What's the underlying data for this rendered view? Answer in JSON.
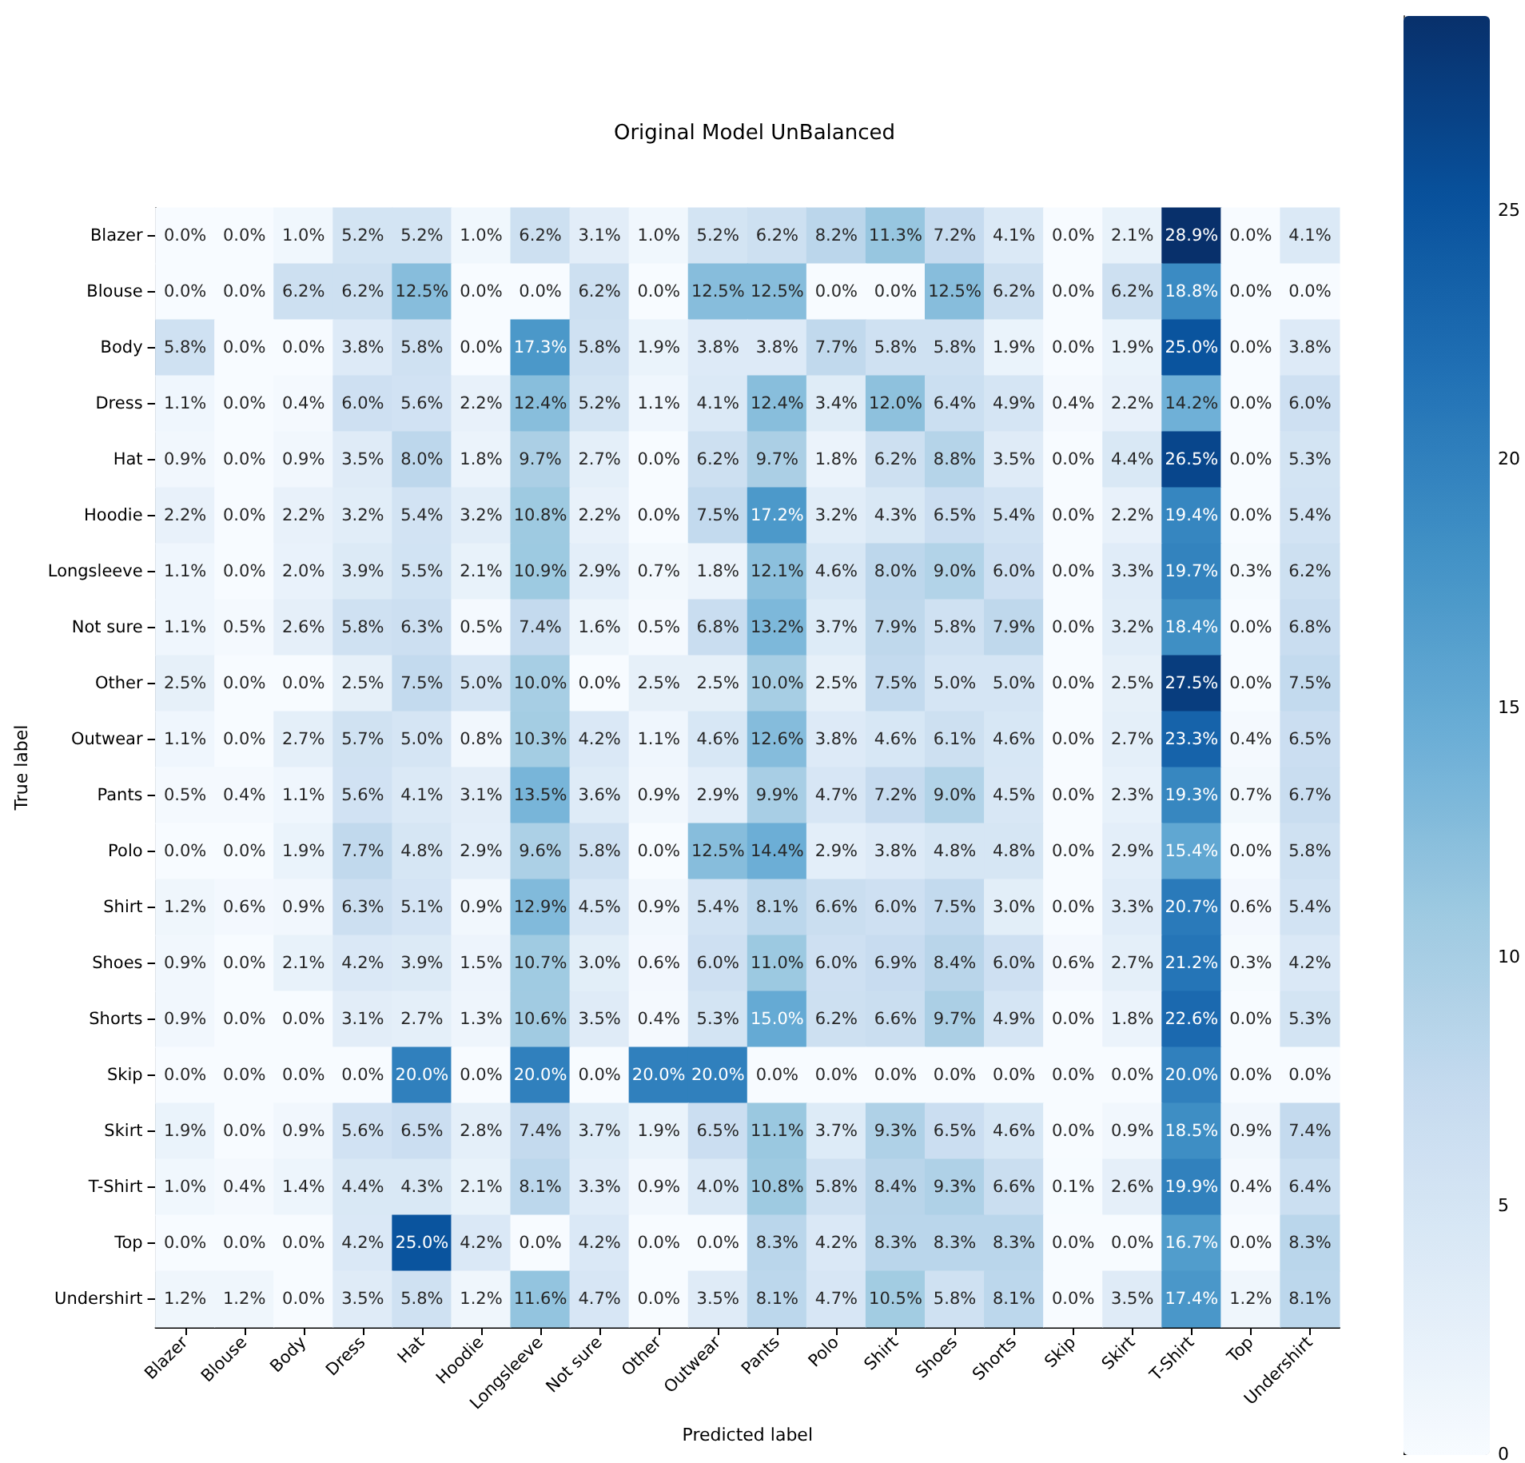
{
  "chart_data": {
    "type": "heatmap",
    "title": "Original Model UnBalanced",
    "xlabel": "Predicted label",
    "ylabel": "True label",
    "categories": [
      "Blazer",
      "Blouse",
      "Body",
      "Dress",
      "Hat",
      "Hoodie",
      "Longsleeve",
      "Not sure",
      "Other",
      "Outwear",
      "Pants",
      "Polo",
      "Shirt",
      "Shoes",
      "Shorts",
      "Skip",
      "Skirt",
      "T-Shirt",
      "Top",
      "Undershirt"
    ],
    "y_categories": [
      "Blazer",
      "Blouse",
      "Body",
      "Dress",
      "Hat",
      "Hoodie",
      "Longsleeve",
      "Not sure",
      "Other",
      "Outwear",
      "Pants",
      "Polo",
      "Shirt",
      "Shoes",
      "Shorts",
      "Skip",
      "Skirt",
      "T-Shirt",
      "Top",
      "Undershirt"
    ],
    "cells": [
      [
        0.0,
        0.0,
        1.0,
        5.2,
        5.2,
        1.0,
        6.2,
        3.1,
        1.0,
        5.2,
        6.2,
        8.2,
        11.3,
        7.2,
        4.1,
        0.0,
        2.1,
        28.9,
        0.0,
        4.1
      ],
      [
        0.0,
        0.0,
        6.2,
        6.2,
        12.5,
        0.0,
        0.0,
        6.2,
        0.0,
        12.5,
        12.5,
        0.0,
        0.0,
        12.5,
        6.2,
        0.0,
        6.2,
        18.8,
        0.0,
        0.0
      ],
      [
        5.8,
        0.0,
        0.0,
        3.8,
        5.8,
        0.0,
        17.3,
        5.8,
        1.9,
        3.8,
        3.8,
        7.7,
        5.8,
        5.8,
        1.9,
        0.0,
        1.9,
        25.0,
        0.0,
        3.8
      ],
      [
        1.1,
        0.0,
        0.4,
        6.0,
        5.6,
        2.2,
        12.4,
        5.2,
        1.1,
        4.1,
        12.4,
        3.4,
        12.0,
        6.4,
        4.9,
        0.4,
        2.2,
        14.2,
        0.0,
        6.0
      ],
      [
        0.9,
        0.0,
        0.9,
        3.5,
        8.0,
        1.8,
        9.7,
        2.7,
        0.0,
        6.2,
        9.7,
        1.8,
        6.2,
        8.8,
        3.5,
        0.0,
        4.4,
        26.5,
        0.0,
        5.3
      ],
      [
        2.2,
        0.0,
        2.2,
        3.2,
        5.4,
        3.2,
        10.8,
        2.2,
        0.0,
        7.5,
        17.2,
        3.2,
        4.3,
        6.5,
        5.4,
        0.0,
        2.2,
        19.4,
        0.0,
        5.4
      ],
      [
        1.1,
        0.0,
        2.0,
        3.9,
        5.5,
        2.1,
        10.9,
        2.9,
        0.7,
        1.8,
        12.1,
        4.6,
        8.0,
        9.0,
        6.0,
        0.0,
        3.3,
        19.7,
        0.3,
        6.2
      ],
      [
        1.1,
        0.5,
        2.6,
        5.8,
        6.3,
        0.5,
        7.4,
        1.6,
        0.5,
        6.8,
        13.2,
        3.7,
        7.9,
        5.8,
        7.9,
        0.0,
        3.2,
        18.4,
        0.0,
        6.8
      ],
      [
        2.5,
        0.0,
        0.0,
        2.5,
        7.5,
        5.0,
        10.0,
        0.0,
        2.5,
        2.5,
        10.0,
        2.5,
        7.5,
        5.0,
        5.0,
        0.0,
        2.5,
        27.5,
        0.0,
        7.5
      ],
      [
        1.1,
        0.0,
        2.7,
        5.7,
        5.0,
        0.8,
        10.3,
        4.2,
        1.1,
        4.6,
        12.6,
        3.8,
        4.6,
        6.1,
        4.6,
        0.0,
        2.7,
        23.3,
        0.4,
        6.5
      ],
      [
        0.5,
        0.4,
        1.1,
        5.6,
        4.1,
        3.1,
        13.5,
        3.6,
        0.9,
        2.9,
        9.9,
        4.7,
        7.2,
        9.0,
        4.5,
        0.0,
        2.3,
        19.3,
        0.7,
        6.7
      ],
      [
        0.0,
        0.0,
        1.9,
        7.7,
        4.8,
        2.9,
        9.6,
        5.8,
        0.0,
        12.5,
        14.4,
        2.9,
        3.8,
        4.8,
        4.8,
        0.0,
        2.9,
        15.4,
        0.0,
        5.8
      ],
      [
        1.2,
        0.6,
        0.9,
        6.3,
        5.1,
        0.9,
        12.9,
        4.5,
        0.9,
        5.4,
        8.1,
        6.6,
        6.0,
        7.5,
        3.0,
        0.0,
        3.3,
        20.7,
        0.6,
        5.4
      ],
      [
        0.9,
        0.0,
        2.1,
        4.2,
        3.9,
        1.5,
        10.7,
        3.0,
        0.6,
        6.0,
        11.0,
        6.0,
        6.9,
        8.4,
        6.0,
        0.6,
        2.7,
        21.2,
        0.3,
        4.2
      ],
      [
        0.9,
        0.0,
        0.0,
        3.1,
        2.7,
        1.3,
        10.6,
        3.5,
        0.4,
        5.3,
        15.0,
        6.2,
        6.6,
        9.7,
        4.9,
        0.0,
        1.8,
        22.6,
        0.0,
        5.3
      ],
      [
        0.0,
        0.0,
        0.0,
        0.0,
        20.0,
        0.0,
        20.0,
        0.0,
        20.0,
        20.0,
        0.0,
        0.0,
        0.0,
        0.0,
        0.0,
        0.0,
        0.0,
        20.0,
        0.0,
        0.0
      ],
      [
        1.9,
        0.0,
        0.9,
        5.6,
        6.5,
        2.8,
        7.4,
        3.7,
        1.9,
        6.5,
        11.1,
        3.7,
        9.3,
        6.5,
        4.6,
        0.0,
        0.9,
        18.5,
        0.9,
        7.4
      ],
      [
        1.0,
        0.4,
        1.4,
        4.4,
        4.3,
        2.1,
        8.1,
        3.3,
        0.9,
        4.0,
        10.8,
        5.8,
        8.4,
        9.3,
        6.6,
        0.1,
        2.6,
        19.9,
        0.4,
        6.4
      ],
      [
        0.0,
        0.0,
        0.0,
        4.2,
        25.0,
        4.2,
        0.0,
        4.2,
        0.0,
        0.0,
        8.3,
        4.2,
        8.3,
        8.3,
        8.3,
        0.0,
        0.0,
        16.7,
        0.0,
        8.3
      ],
      [
        1.2,
        1.2,
        0.0,
        3.5,
        5.8,
        1.2,
        11.6,
        4.7,
        0.0,
        3.5,
        8.1,
        4.7,
        10.5,
        5.8,
        8.1,
        0.0,
        3.5,
        17.4,
        1.2,
        8.1
      ]
    ],
    "cell_labels": [
      [
        "0.0%",
        "0.0%",
        "1.0%",
        "5.2%",
        "5.2%",
        "1.0%",
        "6.2%",
        "3.1%",
        "1.0%",
        "5.2%",
        "6.2%",
        "8.2%",
        "11.3%",
        "7.2%",
        "4.1%",
        "0.0%",
        "2.1%",
        "28.9%",
        "0.0%",
        "4.1%"
      ],
      [
        "0.0%",
        "0.0%",
        "6.2%",
        "6.2%",
        "12.5%",
        "0.0%",
        "0.0%",
        "6.2%",
        "0.0%",
        "12.5%",
        "12.5%",
        "0.0%",
        "0.0%",
        "12.5%",
        "6.2%",
        "0.0%",
        "6.2%",
        "18.8%",
        "0.0%",
        "0.0%"
      ],
      [
        "5.8%",
        "0.0%",
        "0.0%",
        "3.8%",
        "5.8%",
        "0.0%",
        "17.3%",
        "5.8%",
        "1.9%",
        "3.8%",
        "3.8%",
        "7.7%",
        "5.8%",
        "5.8%",
        "1.9%",
        "0.0%",
        "1.9%",
        "25.0%",
        "0.0%",
        "3.8%"
      ],
      [
        "1.1%",
        "0.0%",
        "0.4%",
        "6.0%",
        "5.6%",
        "2.2%",
        "12.4%",
        "5.2%",
        "1.1%",
        "4.1%",
        "12.4%",
        "3.4%",
        "12.0%",
        "6.4%",
        "4.9%",
        "0.4%",
        "2.2%",
        "14.2%",
        "0.0%",
        "6.0%"
      ],
      [
        "0.9%",
        "0.0%",
        "0.9%",
        "3.5%",
        "8.0%",
        "1.8%",
        "9.7%",
        "2.7%",
        "0.0%",
        "6.2%",
        "9.7%",
        "1.8%",
        "6.2%",
        "8.8%",
        "3.5%",
        "0.0%",
        "4.4%",
        "26.5%",
        "0.0%",
        "5.3%"
      ],
      [
        "2.2%",
        "0.0%",
        "2.2%",
        "3.2%",
        "5.4%",
        "3.2%",
        "10.8%",
        "2.2%",
        "0.0%",
        "7.5%",
        "17.2%",
        "3.2%",
        "4.3%",
        "6.5%",
        "5.4%",
        "0.0%",
        "2.2%",
        "19.4%",
        "0.0%",
        "5.4%"
      ],
      [
        "1.1%",
        "0.0%",
        "2.0%",
        "3.9%",
        "5.5%",
        "2.1%",
        "10.9%",
        "2.9%",
        "0.7%",
        "1.8%",
        "12.1%",
        "4.6%",
        "8.0%",
        "9.0%",
        "6.0%",
        "0.0%",
        "3.3%",
        "19.7%",
        "0.3%",
        "6.2%"
      ],
      [
        "1.1%",
        "0.5%",
        "2.6%",
        "5.8%",
        "6.3%",
        "0.5%",
        "7.4%",
        "1.6%",
        "0.5%",
        "6.8%",
        "13.2%",
        "3.7%",
        "7.9%",
        "5.8%",
        "7.9%",
        "0.0%",
        "3.2%",
        "18.4%",
        "0.0%",
        "6.8%"
      ],
      [
        "2.5%",
        "0.0%",
        "0.0%",
        "2.5%",
        "7.5%",
        "5.0%",
        "10.0%",
        "0.0%",
        "2.5%",
        "2.5%",
        "10.0%",
        "2.5%",
        "7.5%",
        "5.0%",
        "5.0%",
        "0.0%",
        "2.5%",
        "27.5%",
        "0.0%",
        "7.5%"
      ],
      [
        "1.1%",
        "0.0%",
        "2.7%",
        "5.7%",
        "5.0%",
        "0.8%",
        "10.3%",
        "4.2%",
        "1.1%",
        "4.6%",
        "12.6%",
        "3.8%",
        "4.6%",
        "6.1%",
        "4.6%",
        "0.0%",
        "2.7%",
        "23.3%",
        "0.4%",
        "6.5%"
      ],
      [
        "0.5%",
        "0.4%",
        "1.1%",
        "5.6%",
        "4.1%",
        "3.1%",
        "13.5%",
        "3.6%",
        "0.9%",
        "2.9%",
        "9.9%",
        "4.7%",
        "7.2%",
        "9.0%",
        "4.5%",
        "0.0%",
        "2.3%",
        "19.3%",
        "0.7%",
        "6.7%"
      ],
      [
        "0.0%",
        "0.0%",
        "1.9%",
        "7.7%",
        "4.8%",
        "2.9%",
        "9.6%",
        "5.8%",
        "0.0%",
        "12.5%",
        "14.4%",
        "2.9%",
        "3.8%",
        "4.8%",
        "4.8%",
        "0.0%",
        "2.9%",
        "15.4%",
        "0.0%",
        "5.8%"
      ],
      [
        "1.2%",
        "0.6%",
        "0.9%",
        "6.3%",
        "5.1%",
        "0.9%",
        "12.9%",
        "4.5%",
        "0.9%",
        "5.4%",
        "8.1%",
        "6.6%",
        "6.0%",
        "7.5%",
        "3.0%",
        "0.0%",
        "3.3%",
        "20.7%",
        "0.6%",
        "5.4%"
      ],
      [
        "0.9%",
        "0.0%",
        "2.1%",
        "4.2%",
        "3.9%",
        "1.5%",
        "10.7%",
        "3.0%",
        "0.6%",
        "6.0%",
        "11.0%",
        "6.0%",
        "6.9%",
        "8.4%",
        "6.0%",
        "0.6%",
        "2.7%",
        "21.2%",
        "0.3%",
        "4.2%"
      ],
      [
        "0.9%",
        "0.0%",
        "0.0%",
        "3.1%",
        "2.7%",
        "1.3%",
        "10.6%",
        "3.5%",
        "0.4%",
        "5.3%",
        "15.0%",
        "6.2%",
        "6.6%",
        "9.7%",
        "4.9%",
        "0.0%",
        "1.8%",
        "22.6%",
        "0.0%",
        "5.3%"
      ],
      [
        "0.0%",
        "0.0%",
        "0.0%",
        "0.0%",
        "20.0%",
        "0.0%",
        "20.0%",
        "0.0%",
        "20.0%",
        "20.0%",
        "0.0%",
        "0.0%",
        "0.0%",
        "0.0%",
        "0.0%",
        "0.0%",
        "0.0%",
        "20.0%",
        "0.0%",
        "0.0%"
      ],
      [
        "1.9%",
        "0.0%",
        "0.9%",
        "5.6%",
        "6.5%",
        "2.8%",
        "7.4%",
        "3.7%",
        "1.9%",
        "6.5%",
        "11.1%",
        "3.7%",
        "9.3%",
        "6.5%",
        "4.6%",
        "0.0%",
        "0.9%",
        "18.5%",
        "0.9%",
        "7.4%"
      ],
      [
        "1.0%",
        "0.4%",
        "1.4%",
        "4.4%",
        "4.3%",
        "2.1%",
        "8.1%",
        "3.3%",
        "0.9%",
        "4.0%",
        "10.8%",
        "5.8%",
        "8.4%",
        "9.3%",
        "6.6%",
        "0.1%",
        "2.6%",
        "19.9%",
        "0.4%",
        "6.4%"
      ],
      [
        "0.0%",
        "0.0%",
        "0.0%",
        "4.2%",
        "25.0%",
        "4.2%",
        "0.0%",
        "4.2%",
        "0.0%",
        "0.0%",
        "8.3%",
        "4.2%",
        "8.3%",
        "8.3%",
        "8.3%",
        "0.0%",
        "0.0%",
        "16.7%",
        "0.0%",
        "8.3%"
      ],
      [
        "1.2%",
        "1.2%",
        "0.0%",
        "3.5%",
        "5.8%",
        "1.2%",
        "11.6%",
        "4.7%",
        "0.0%",
        "3.5%",
        "8.1%",
        "4.7%",
        "10.5%",
        "5.8%",
        "8.1%",
        "0.0%",
        "3.5%",
        "17.4%",
        "1.2%",
        "8.1%"
      ]
    ],
    "clim": [
      0,
      28.9
    ],
    "cticks": [
      0,
      5,
      10,
      15,
      20,
      25
    ]
  }
}
